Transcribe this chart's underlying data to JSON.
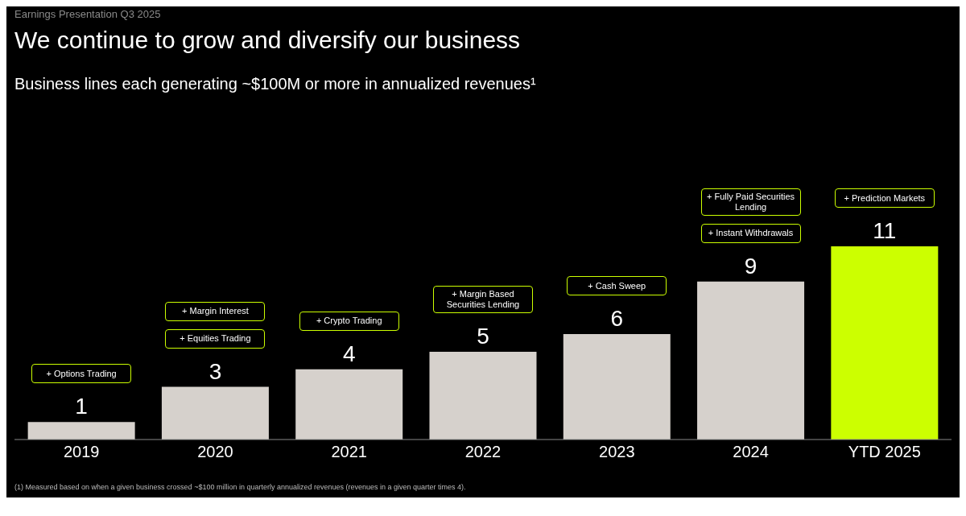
{
  "chart_data": {
    "type": "bar",
    "title": "We continue to grow and diversify our business",
    "subtitle": "Business lines each generating ~$100M or more in annualized revenues¹",
    "categories": [
      "2019",
      "2020",
      "2021",
      "2022",
      "2023",
      "2024",
      "YTD 2025"
    ],
    "values": [
      1,
      3,
      4,
      5,
      6,
      9,
      11
    ],
    "colors": [
      "#d6d1cc",
      "#d6d1cc",
      "#d6d1cc",
      "#d6d1cc",
      "#d6d1cc",
      "#d6d1cc",
      "#ccff00"
    ],
    "data_labels": true,
    "grid": false,
    "legend": false,
    "annotations": [
      "Earnings Presentation Q3 2025",
      "+ Options Trading",
      "+ Margin Interest",
      "+ Equities Trading",
      "+ Crypto Trading",
      "+ Margin Based Securities Lending",
      "+ Cash Sweep",
      "+ Fully Paid Securities Lending",
      "+ Instant Withdrawals",
      "+ Prediction Markets",
      "(1) Measured based on when a given business crossed ~$100 million in quarterly annualized revenues (revenues in a given quarter times 4)."
    ]
  }
}
